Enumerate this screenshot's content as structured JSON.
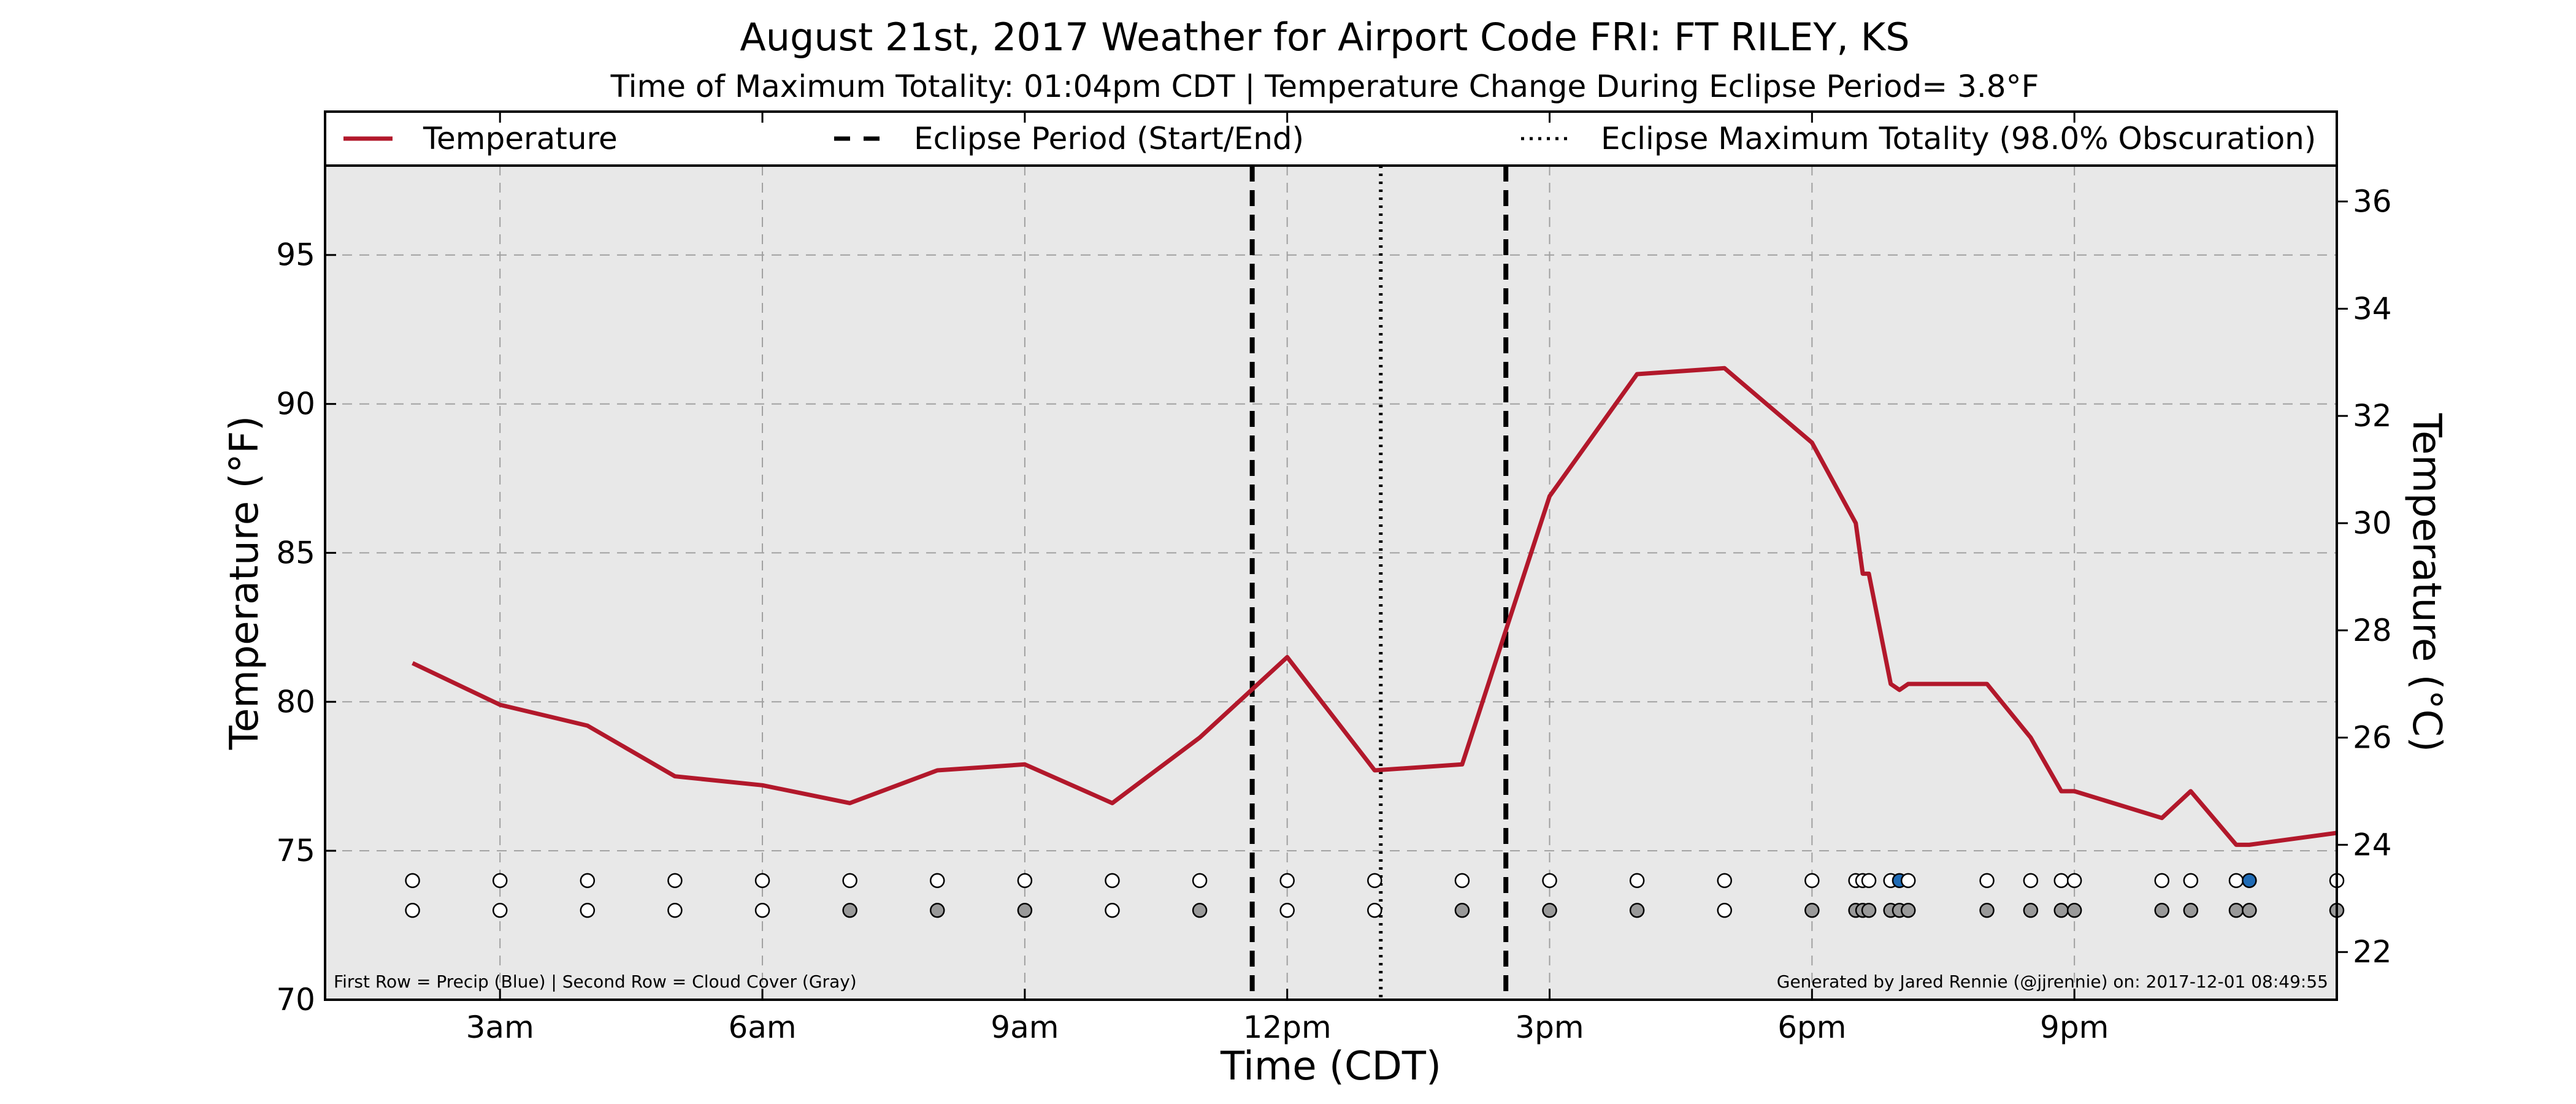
{
  "chart_data": {
    "type": "line",
    "title": "August 21st, 2017 Weather for Airport Code FRI: FT RILEY, KS",
    "subtitle": "Time of Maximum Totality: 01:04pm CDT | Temperature Change During Eclipse Period= 3.8°F",
    "xlabel": "Time (CDT)",
    "ylabel": "Temperature (°F)",
    "y2label": "Temperature (°C)",
    "xlim": [
      1.0,
      24.0
    ],
    "ylim": [
      70,
      98
    ],
    "y2lim": [
      21.11,
      36.67
    ],
    "x_ticks": [
      {
        "x": 3,
        "label": "3am"
      },
      {
        "x": 6,
        "label": "6am"
      },
      {
        "x": 9,
        "label": "9am"
      },
      {
        "x": 12,
        "label": "12pm"
      },
      {
        "x": 15,
        "label": "3pm"
      },
      {
        "x": 18,
        "label": "6pm"
      },
      {
        "x": 21,
        "label": "9pm"
      }
    ],
    "y_ticks": [
      70,
      75,
      80,
      85,
      90,
      95
    ],
    "y2_ticks": [
      22,
      24,
      26,
      28,
      30,
      32,
      34,
      36
    ],
    "grid": true,
    "legend": {
      "position": "top",
      "entries": [
        {
          "label": "Temperature",
          "style": "solid",
          "color": "#b2182b"
        },
        {
          "label": "Eclipse Period (Start/End)",
          "style": "dashed",
          "color": "#000000"
        },
        {
          "label": "Eclipse Maximum Totality (98.0% Obscuration)",
          "style": "dotted",
          "color": "#000000"
        }
      ]
    },
    "series": [
      {
        "name": "Temperature",
        "color": "#b2182b",
        "x": [
          2.0,
          3.0,
          4.0,
          5.0,
          6.0,
          7.0,
          8.0,
          9.0,
          10.0,
          11.0,
          12.0,
          13.0,
          14.0,
          15.0,
          16.0,
          17.0,
          18.0,
          18.5,
          18.58,
          18.65,
          18.9,
          19.0,
          19.1,
          20.0,
          20.5,
          20.85,
          21.0,
          22.0,
          22.33,
          22.85,
          23.0,
          24.0
        ],
        "y": [
          81.3,
          79.9,
          79.2,
          77.5,
          77.2,
          76.6,
          77.7,
          77.9,
          76.6,
          78.8,
          81.5,
          77.7,
          77.9,
          86.9,
          91.0,
          91.2,
          88.7,
          86.0,
          84.3,
          84.3,
          80.6,
          80.4,
          80.6,
          80.6,
          78.8,
          77.0,
          77.0,
          76.1,
          77.0,
          75.2,
          75.2,
          75.6
        ]
      }
    ],
    "eclipse_period": {
      "start": 11.6,
      "end": 14.5,
      "color": "#000000"
    },
    "max_totality": {
      "x": 13.07,
      "color": "#000000"
    },
    "precip_row": {
      "y": 74,
      "x": [
        2.0,
        3.0,
        4.0,
        5.0,
        6.0,
        7.0,
        8.0,
        9.0,
        10.0,
        11.0,
        12.0,
        13.0,
        14.0,
        15.0,
        16.0,
        17.0,
        18.0,
        18.5,
        18.58,
        18.65,
        18.9,
        19.0,
        19.1,
        20.0,
        20.5,
        20.85,
        21.0,
        22.0,
        22.33,
        22.85,
        23.0,
        24.0
      ],
      "filled": [
        false,
        false,
        false,
        false,
        false,
        false,
        false,
        false,
        false,
        false,
        false,
        false,
        false,
        false,
        false,
        false,
        false,
        false,
        false,
        false,
        false,
        true,
        false,
        false,
        false,
        false,
        false,
        false,
        false,
        false,
        true,
        false
      ],
      "fill_color": "#1f6bb5"
    },
    "cloud_row": {
      "y": 73,
      "x": [
        2.0,
        3.0,
        4.0,
        5.0,
        6.0,
        7.0,
        8.0,
        9.0,
        10.0,
        11.0,
        12.0,
        13.0,
        14.0,
        15.0,
        16.0,
        17.0,
        18.0,
        18.5,
        18.58,
        18.65,
        18.9,
        19.0,
        19.1,
        20.0,
        20.5,
        20.85,
        21.0,
        22.0,
        22.33,
        22.85,
        23.0,
        24.0
      ],
      "filled": [
        false,
        false,
        false,
        false,
        false,
        true,
        true,
        true,
        false,
        true,
        false,
        false,
        true,
        true,
        true,
        false,
        true,
        true,
        true,
        true,
        true,
        true,
        true,
        true,
        true,
        true,
        true,
        true,
        true,
        true,
        true,
        true
      ],
      "fill_color": "#999999"
    },
    "annotations": {
      "left": "First Row = Precip (Blue) | Second Row = Cloud Cover (Gray)",
      "right": "Generated by Jared Rennie (@jjrennie) on: 2017-12-01 08:49:55"
    },
    "colors": {
      "plot_background": "#e8e8e8",
      "grid": "#a0a0a0",
      "line": "#b2182b"
    }
  }
}
